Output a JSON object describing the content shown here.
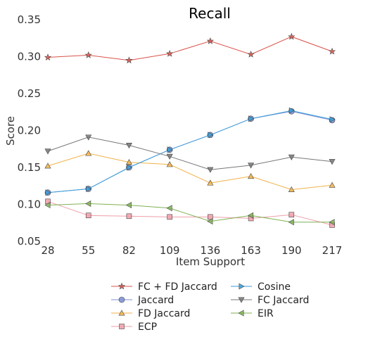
{
  "chart_data": {
    "type": "line",
    "title": "Recall",
    "xlabel": "Item Support",
    "ylabel": "Score",
    "categories": [
      "28",
      "55",
      "82",
      "109",
      "136",
      "163",
      "190",
      "217"
    ],
    "ylim": [
      0.05,
      0.35
    ],
    "yticks": [
      "0.05",
      "0.10",
      "0.15",
      "0.20",
      "0.25",
      "0.30",
      "0.35"
    ],
    "grid": false,
    "legend_position": "bottom",
    "series": [
      {
        "name": "FC + FD Jaccard",
        "color": "#d9534a",
        "marker": "star",
        "values": [
          0.299,
          0.302,
          0.295,
          0.304,
          0.321,
          0.303,
          0.327,
          0.307
        ]
      },
      {
        "name": "Jaccard",
        "color": "#7b8fd4",
        "marker": "circle",
        "values": [
          0.116,
          0.121,
          0.15,
          0.174,
          0.194,
          0.216,
          0.226,
          0.214
        ]
      },
      {
        "name": "FD Jaccard",
        "color": "#f0b24a",
        "marker": "triangle-up",
        "values": [
          0.152,
          0.169,
          0.157,
          0.154,
          0.129,
          0.138,
          0.12,
          0.126
        ]
      },
      {
        "name": "ECP",
        "color": "#ee9ea8",
        "marker": "square",
        "values": [
          0.104,
          0.085,
          0.084,
          0.083,
          0.083,
          0.081,
          0.086,
          0.072
        ]
      },
      {
        "name": "Cosine",
        "color": "#3a9ed9",
        "marker": "triangle-right",
        "values": [
          0.116,
          0.121,
          0.15,
          0.174,
          0.194,
          0.216,
          0.227,
          0.215
        ]
      },
      {
        "name": "FC Jaccard",
        "color": "#777777",
        "marker": "triangle-down",
        "values": [
          0.172,
          0.191,
          0.18,
          0.165,
          0.147,
          0.153,
          0.164,
          0.158
        ]
      },
      {
        "name": "EIR",
        "color": "#7fb152",
        "marker": "triangle-left",
        "values": [
          0.099,
          0.101,
          0.099,
          0.095,
          0.077,
          0.085,
          0.076,
          0.076
        ]
      }
    ]
  }
}
